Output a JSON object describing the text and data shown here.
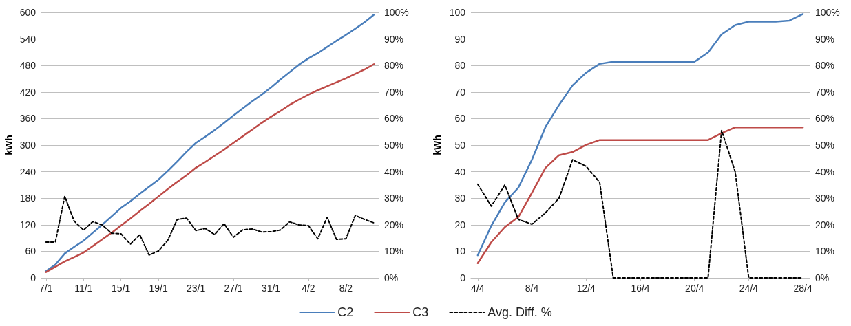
{
  "chart_data": [
    {
      "type": "line",
      "ylabel": "kWh",
      "marker": "none",
      "grid": "y",
      "legend": "bottom",
      "categories": [
        "7/1",
        null,
        null,
        null,
        "11/1",
        null,
        null,
        null,
        "15/1",
        null,
        null,
        null,
        "19/1",
        null,
        null,
        null,
        "23/1",
        null,
        null,
        null,
        "27/1",
        null,
        null,
        null,
        "31/1",
        null,
        null,
        null,
        "4/2",
        null,
        null,
        null,
        "8/2",
        null,
        null,
        null
      ],
      "ylim": [
        0,
        600
      ],
      "yticks": [
        0,
        60,
        120,
        180,
        240,
        300,
        360,
        420,
        480,
        540,
        600
      ],
      "y2lim": [
        0,
        100
      ],
      "y2ticks": [
        {
          "value": 0,
          "label": "0%"
        },
        {
          "value": 10,
          "label": "10%"
        },
        {
          "value": 20,
          "label": "20%"
        },
        {
          "value": 30,
          "label": "30%"
        },
        {
          "value": 40,
          "label": "40%"
        },
        {
          "value": 50,
          "label": "50%"
        },
        {
          "value": 60,
          "label": "60%"
        },
        {
          "value": 70,
          "label": "70%"
        },
        {
          "value": 80,
          "label": "80%"
        },
        {
          "value": 90,
          "label": "90%"
        },
        {
          "value": 100,
          "label": "100%"
        }
      ],
      "series": [
        {
          "name": "C2",
          "color": "#4a7ebb",
          "line_style": "solid",
          "values": [
            15,
            30,
            55,
            70,
            84,
            102,
            120,
            139,
            158,
            173,
            190,
            206,
            222,
            242,
            263,
            285,
            305,
            319,
            334,
            350,
            367,
            383,
            399,
            414,
            430,
            448,
            465,
            482,
            496,
            508,
            522,
            536,
            549,
            563,
            578,
            595
          ]
        },
        {
          "name": "C3",
          "color": "#be4b48",
          "line_style": "solid",
          "values": [
            13,
            25,
            37,
            47,
            57,
            72,
            87,
            102,
            118,
            134,
            151,
            167,
            184,
            201,
            217,
            232,
            249,
            262,
            276,
            290,
            305,
            320,
            335,
            350,
            364,
            377,
            391,
            403,
            414,
            424,
            433,
            442,
            451,
            461,
            471,
            483
          ]
        },
        {
          "name": "Avg. Diff. %",
          "color": "#000000",
          "line_style": "dashed",
          "axis": "y2",
          "values": [
            13.5,
            13.5,
            30.7,
            21.4,
            18,
            21.2,
            19.9,
            16.8,
            16.6,
            12.7,
            16.3,
            8.6,
            10.1,
            14.2,
            22,
            22.5,
            17.8,
            18.6,
            16.3,
            20.4,
            15.3,
            18.1,
            18.4,
            17.3,
            17.4,
            18,
            21.1,
            19.9,
            19.7,
            14.7,
            22.8,
            14.5,
            14.7,
            23.5,
            22,
            20.7
          ]
        }
      ]
    },
    {
      "type": "line",
      "ylabel": "kWh",
      "marker": "none",
      "grid": "y",
      "categories": [
        "4/4",
        null,
        null,
        null,
        "8/4",
        null,
        null,
        null,
        "12/4",
        null,
        null,
        null,
        "16/4",
        null,
        null,
        null,
        "20/4",
        null,
        null,
        null,
        "24/4",
        null,
        null,
        null,
        "28/4"
      ],
      "ylim": [
        0,
        100
      ],
      "yticks": [
        0,
        10,
        20,
        30,
        40,
        50,
        60,
        70,
        80,
        90,
        100
      ],
      "y2lim": [
        0,
        100
      ],
      "y2ticks": [
        {
          "value": 0,
          "label": "0%"
        },
        {
          "value": 10,
          "label": "10%"
        },
        {
          "value": 20,
          "label": "20%"
        },
        {
          "value": 30,
          "label": "30%"
        },
        {
          "value": 40,
          "label": "40%"
        },
        {
          "value": 50,
          "label": "50%"
        },
        {
          "value": 60,
          "label": "60%"
        },
        {
          "value": 70,
          "label": "70%"
        },
        {
          "value": 80,
          "label": "80%"
        },
        {
          "value": 90,
          "label": "90%"
        },
        {
          "value": 100,
          "label": "100%"
        }
      ],
      "series": [
        {
          "color": "#4a7ebb",
          "line_style": "solid",
          "values": [
            8.5,
            19.6,
            28.4,
            34,
            44.5,
            56.8,
            65.1,
            72.5,
            77.3,
            80.6,
            81.4,
            81.4,
            81.4,
            81.4,
            81.4,
            81.4,
            81.4,
            84.9,
            91.7,
            95.2,
            96.5,
            96.5,
            96.5,
            96.9,
            99.4
          ]
        },
        {
          "color": "#be4b48",
          "line_style": "solid",
          "values": [
            5.5,
            13.4,
            19.1,
            22.9,
            32,
            41.4,
            46.2,
            47.4,
            50.1,
            51.9,
            51.9,
            51.9,
            51.9,
            51.9,
            51.9,
            51.9,
            51.9,
            51.9,
            54.5,
            56.7,
            56.7,
            56.7,
            56.7,
            56.7,
            56.7
          ]
        },
        {
          "color": "#000000",
          "line_style": "dashed",
          "axis": "y2",
          "values": [
            35.3,
            27,
            35,
            22,
            20.2,
            24.5,
            30,
            44.5,
            42,
            36,
            0,
            0,
            0,
            0,
            0,
            0,
            0,
            0,
            55.5,
            40,
            0,
            0,
            0,
            0,
            0
          ]
        }
      ]
    }
  ]
}
